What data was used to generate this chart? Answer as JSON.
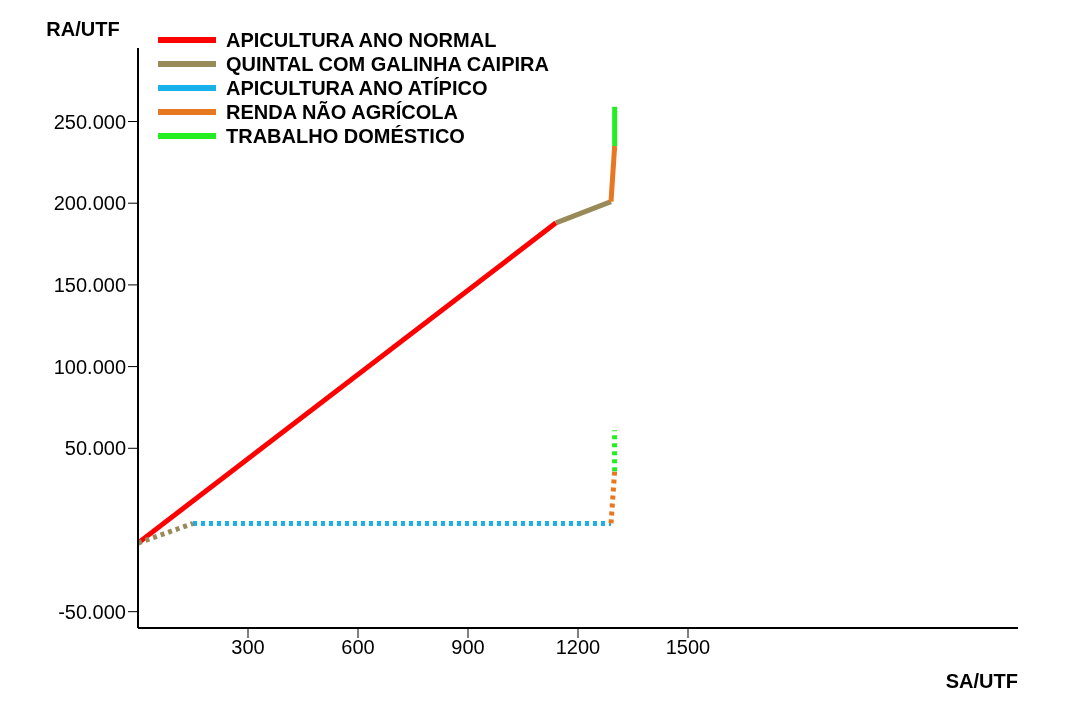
{
  "chart_data": {
    "type": "line",
    "xlabel": "SA/UTF",
    "ylabel": "RA/UTF",
    "xlim": [
      0,
      2400
    ],
    "ylim": [
      -60000,
      295000
    ],
    "xticks": [
      300,
      600,
      900,
      1200,
      1500
    ],
    "yticks": [
      {
        "value": -50000,
        "label": "-50.000"
      },
      {
        "value": 50000,
        "label": "50.000"
      },
      {
        "value": 100000,
        "label": "100.000"
      },
      {
        "value": 150000,
        "label": "150.000"
      },
      {
        "value": 200000,
        "label": "200.000"
      },
      {
        "value": 250000,
        "label": "250.000"
      }
    ],
    "legend": "top left",
    "series": [
      {
        "name": "APICULTURA ANO NORMAL",
        "color": "#ff0000",
        "x": [
          0,
          1140
        ],
        "values": [
          -8000,
          188000
        ],
        "line_style": "solid"
      },
      {
        "name": "QUINTAL COM GALINHA CAIPIRA",
        "color": "#998a5a",
        "x": [
          1140,
          1290
        ],
        "values": [
          188000,
          201000
        ],
        "line_style": "solid"
      },
      {
        "name": "APICULTURA ANO ATÍPICO",
        "color": "#1ab0ec",
        "x": [
          150,
          1290
        ],
        "values": [
          4000,
          4000
        ],
        "line_style": "dotted"
      },
      {
        "name": "RENDA NÃO AGRÍCOLA",
        "color": "#e87722",
        "x": [
          1290,
          1300
        ],
        "values": [
          201000,
          235000
        ],
        "line_style": "solid"
      },
      {
        "name": "TRABALHO DOMÉSTICO",
        "color": "#22ee22",
        "x": [
          1300,
          1300
        ],
        "values": [
          235000,
          259000
        ],
        "line_style": "solid"
      },
      {
        "color": "#998a5a",
        "x": [
          0,
          150
        ],
        "values": [
          -8000,
          4000
        ],
        "line_style": "dotted"
      },
      {
        "color": "#e87722",
        "x": [
          1290,
          1300
        ],
        "values": [
          4000,
          36000
        ],
        "line_style": "dotted"
      },
      {
        "color": "#22ee22",
        "x": [
          1300,
          1300
        ],
        "values": [
          36000,
          61000
        ],
        "line_style": "dotted"
      }
    ]
  }
}
